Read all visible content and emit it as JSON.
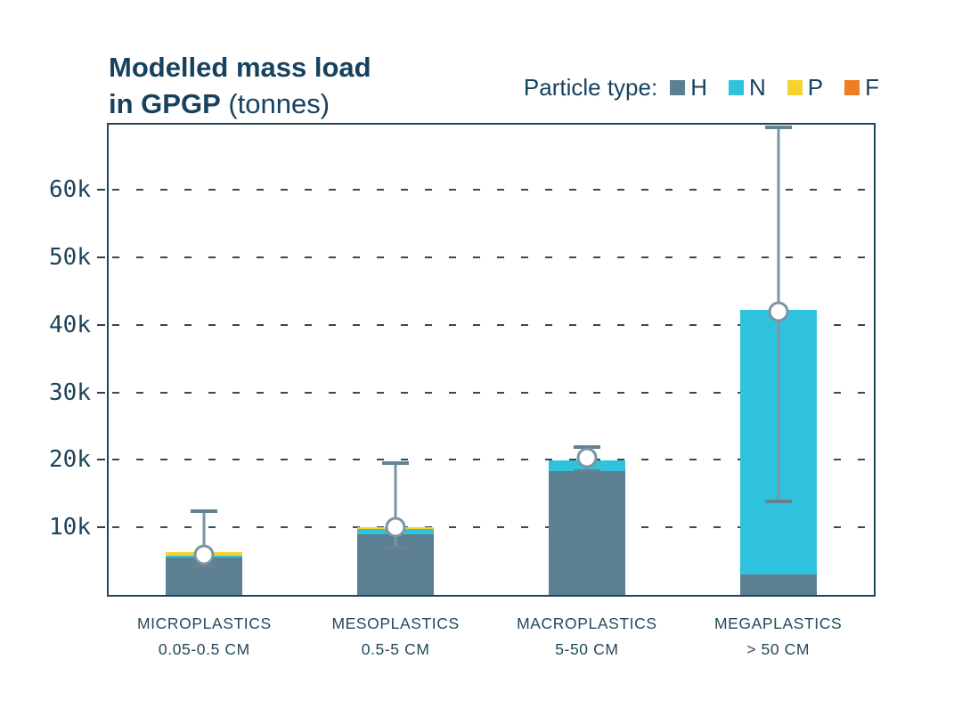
{
  "title": {
    "line1": "Modelled mass load",
    "line2_bold": "in GPGP",
    "line2_normal": " (tonnes)"
  },
  "legend": {
    "label": "Particle type:",
    "items": [
      {
        "key": "H",
        "color": "#5d7f92"
      },
      {
        "key": "N",
        "color": "#2fc2dc"
      },
      {
        "key": "P",
        "color": "#f5d22d"
      },
      {
        "key": "F",
        "color": "#ef7d23"
      }
    ]
  },
  "chart_data": {
    "type": "bar",
    "subtype": "stacked-with-error-bars",
    "title": "Modelled mass load in GPGP (tonnes)",
    "unit": "thousand tonnes",
    "categories": [
      {
        "name": "MICROPLASTICS",
        "size": "0.05-0.5 CM"
      },
      {
        "name": "MESOPLASTICS",
        "size": "0.5-5 CM"
      },
      {
        "name": "MACROPLASTICS",
        "size": "5-50 CM"
      },
      {
        "name": "MEGAPLASTICS",
        "size": "> 50 CM"
      }
    ],
    "series": [
      {
        "name": "H",
        "color": "#5d7f92",
        "values": [
          5.5,
          9.0,
          18.4,
          3.0
        ]
      },
      {
        "name": "N",
        "color": "#2fc2dc",
        "values": [
          0.25,
          0.8,
          1.6,
          39.2
        ]
      },
      {
        "name": "P",
        "color": "#f5d22d",
        "values": [
          0.65,
          0.2,
          0,
          0
        ]
      },
      {
        "name": "F",
        "color": "#ef7d23",
        "values": [
          0,
          0,
          0,
          0
        ]
      }
    ],
    "totals": [
      6.4,
      10.0,
      20.0,
      42.2
    ],
    "markers": [
      6.0,
      10.0,
      20.3,
      42.0
    ],
    "ci_low": [
      4.3,
      7.0,
      18.4,
      13.9
    ],
    "ci_high": [
      12.4,
      19.6,
      21.9,
      69.3
    ],
    "yticks": [
      10,
      20,
      30,
      40,
      50,
      60
    ],
    "ytick_labels": [
      "10k",
      "20k",
      "30k",
      "40k",
      "50k",
      "60k"
    ],
    "ylim": [
      0,
      69.7
    ],
    "grid": "dashed-horizontal",
    "legend_position": "top-right"
  }
}
